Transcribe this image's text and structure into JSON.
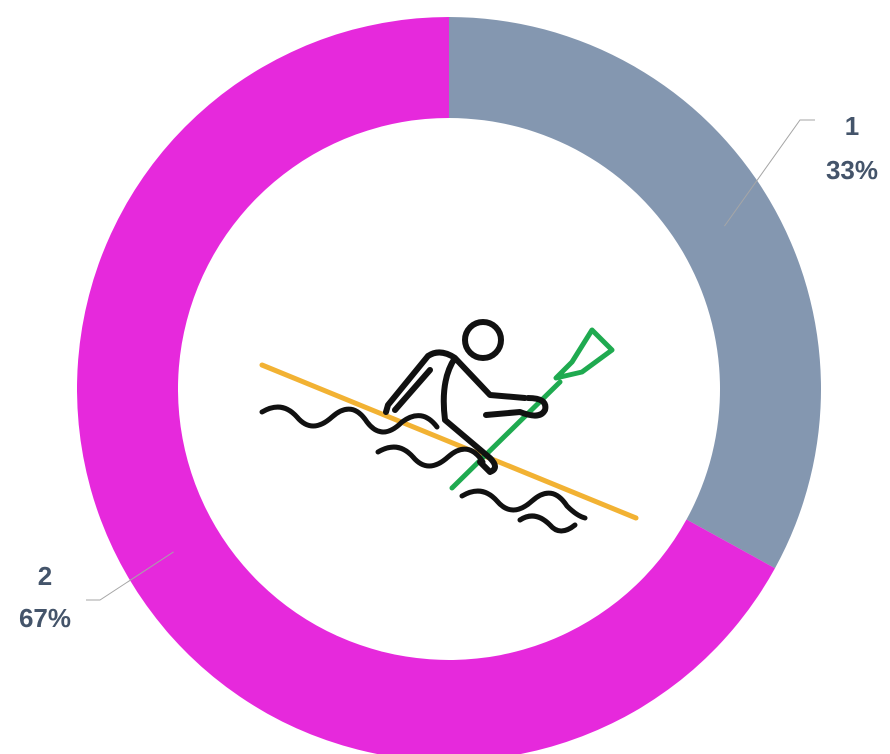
{
  "chart_data": {
    "type": "donut",
    "categories": [
      "1",
      "2"
    ],
    "values": [
      33,
      67
    ],
    "value_labels": [
      "33%",
      "67%"
    ],
    "colors": [
      "#8497b0",
      "#e629dc"
    ]
  }
}
